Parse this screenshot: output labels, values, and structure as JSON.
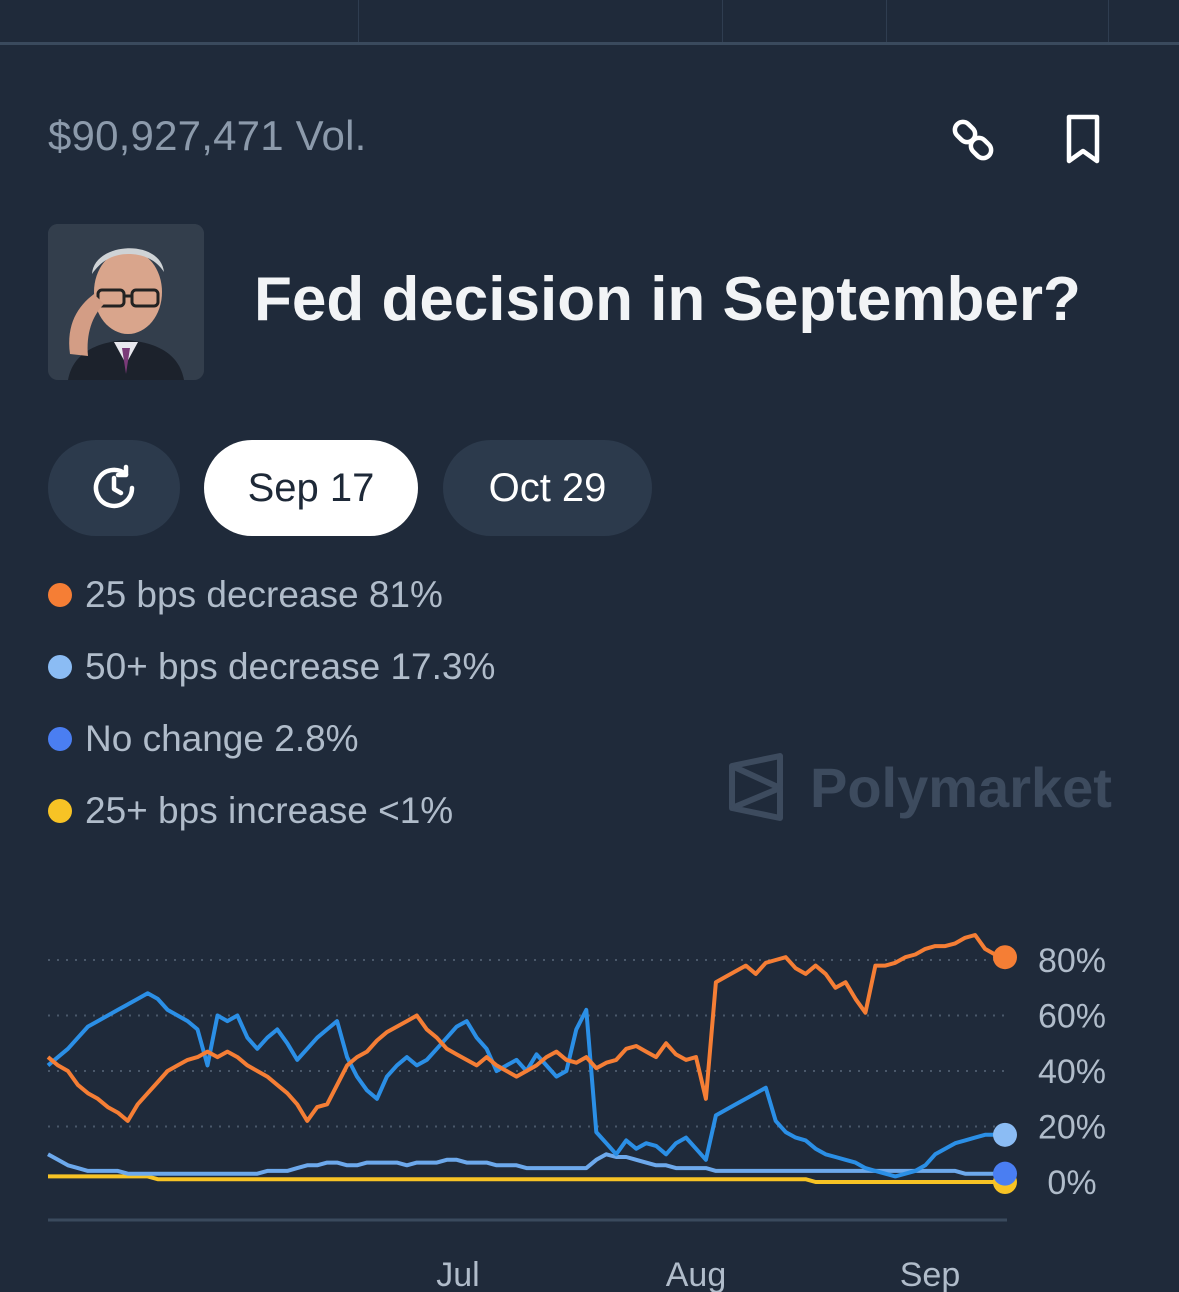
{
  "header": {
    "volume": "$90,927,471 Vol.",
    "link_icon": "link-icon",
    "bookmark_icon": "bookmark-icon"
  },
  "market": {
    "title": "Fed decision in September?",
    "avatar_icon": "portrait-avatar"
  },
  "date_tabs": [
    {
      "label": "Sep 17",
      "active": true
    },
    {
      "label": "Oct 29",
      "active": false
    }
  ],
  "history_icon": "history-clock-icon",
  "legend": [
    {
      "label": "25 bps decrease 81%",
      "color": "#f57e35"
    },
    {
      "label": "50+ bps decrease 17.3%",
      "color": "#8bbcf4"
    },
    {
      "label": "No change 2.8%",
      "color": "#4a7ef2"
    },
    {
      "label": "25+ bps increase <1%",
      "color": "#f7c325"
    }
  ],
  "watermark": {
    "text": "Polymarket"
  },
  "chart_data": {
    "type": "line",
    "x_tick_labels": [
      "Jul",
      "Aug",
      "Sep"
    ],
    "y_tick_labels": [
      "80%",
      "60%",
      "40%",
      "20%",
      "0%"
    ],
    "ylim": [
      0,
      100
    ],
    "grid": true,
    "y_axis_side": "right",
    "series": [
      {
        "name": "25 bps decrease",
        "color": "#f57e35",
        "values": [
          45,
          42,
          40,
          35,
          32,
          30,
          27,
          25,
          22,
          28,
          32,
          36,
          40,
          42,
          44,
          45,
          47,
          45,
          47,
          45,
          42,
          40,
          38,
          35,
          32,
          28,
          22,
          27,
          28,
          35,
          42,
          45,
          47,
          51,
          54,
          56,
          58,
          60,
          55,
          52,
          48,
          46,
          44,
          42,
          45,
          42,
          40,
          38,
          40,
          42,
          45,
          47,
          44,
          43,
          45,
          41,
          43,
          44,
          48,
          49,
          47,
          45,
          50,
          46,
          44,
          45,
          30,
          72,
          74,
          76,
          78,
          75,
          79,
          80,
          81,
          77,
          75,
          78,
          75,
          70,
          72,
          66,
          61,
          78,
          78,
          79,
          81,
          82,
          84,
          85,
          85,
          86,
          88,
          89,
          84,
          82,
          81
        ]
      },
      {
        "name": "50+ bps decrease",
        "color": "#2b8fe6",
        "values": [
          42,
          45,
          48,
          52,
          56,
          58,
          60,
          62,
          64,
          66,
          68,
          66,
          62,
          60,
          58,
          55,
          42,
          60,
          58,
          60,
          52,
          48,
          52,
          55,
          50,
          44,
          48,
          52,
          55,
          58,
          45,
          38,
          33,
          30,
          38,
          42,
          45,
          42,
          44,
          48,
          52,
          56,
          58,
          52,
          48,
          40,
          42,
          44,
          40,
          46,
          42,
          38,
          40,
          55,
          62,
          18,
          14,
          10,
          15,
          12,
          14,
          13,
          10,
          14,
          16,
          12,
          8,
          24,
          26,
          28,
          30,
          32,
          34,
          22,
          18,
          16,
          15,
          12,
          10,
          9,
          8,
          7,
          5,
          4,
          3,
          2,
          3,
          4,
          6,
          10,
          12,
          14,
          15,
          16,
          17,
          17,
          17
        ]
      },
      {
        "name": "No change",
        "color": "#6da9ec",
        "values": [
          10,
          8,
          6,
          5,
          4,
          4,
          4,
          4,
          3,
          3,
          3,
          3,
          3,
          3,
          3,
          3,
          3,
          3,
          3,
          3,
          3,
          3,
          4,
          4,
          4,
          5,
          6,
          6,
          7,
          7,
          6,
          6,
          7,
          7,
          7,
          7,
          6,
          7,
          7,
          7,
          8,
          8,
          7,
          7,
          7,
          6,
          6,
          6,
          5,
          5,
          5,
          5,
          5,
          5,
          5,
          8,
          10,
          9,
          9,
          8,
          7,
          6,
          6,
          5,
          5,
          5,
          5,
          4,
          4,
          4,
          4,
          4,
          4,
          4,
          4,
          4,
          4,
          4,
          4,
          4,
          4,
          4,
          4,
          4,
          4,
          4,
          4,
          4,
          4,
          4,
          4,
          4,
          3,
          3,
          3,
          3,
          3
        ]
      },
      {
        "name": "25+ bps increase",
        "color": "#f7c325",
        "values": [
          2,
          2,
          2,
          2,
          2,
          2,
          2,
          2,
          2,
          2,
          2,
          1,
          1,
          1,
          1,
          1,
          1,
          1,
          1,
          1,
          1,
          1,
          1,
          1,
          1,
          1,
          1,
          1,
          1,
          1,
          1,
          1,
          1,
          1,
          1,
          1,
          1,
          1,
          1,
          1,
          1,
          1,
          1,
          1,
          1,
          1,
          1,
          1,
          1,
          1,
          1,
          1,
          1,
          1,
          1,
          1,
          1,
          1,
          1,
          1,
          1,
          1,
          1,
          1,
          1,
          1,
          1,
          1,
          1,
          1,
          1,
          1,
          1,
          1,
          1,
          1,
          1,
          0,
          0,
          0,
          0,
          0,
          0,
          0,
          0,
          0,
          0,
          0,
          0,
          0,
          0,
          0,
          0,
          0,
          0,
          0,
          0
        ]
      }
    ]
  }
}
